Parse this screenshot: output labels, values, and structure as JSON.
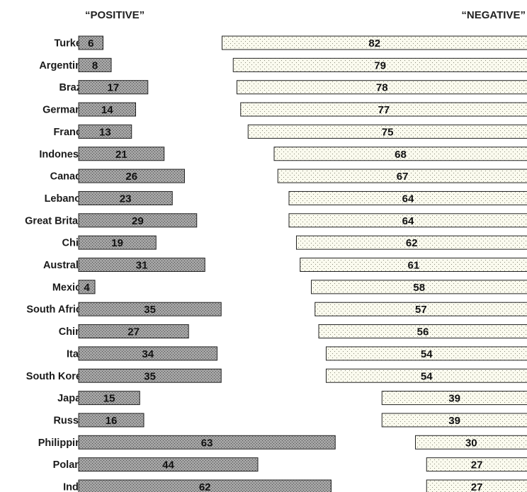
{
  "chart_data": {
    "type": "bar",
    "title": "",
    "headers": {
      "positive": "“POSITIVE”",
      "negative": "“NEGATIVE”"
    },
    "categories": [
      "Turkey",
      "Argentina",
      "Brazil",
      "Germany",
      "France",
      "Indonesia",
      "Canada",
      "Lebanon",
      "Great Britain",
      "Chile",
      "Australia",
      "Mexico",
      "South Africa",
      "China",
      "Italy",
      "South Korea",
      "Japan",
      "Russia",
      "Philippine",
      "Poland",
      "India"
    ],
    "series": [
      {
        "name": "“POSITIVE”",
        "values": [
          6,
          8,
          17,
          14,
          13,
          21,
          26,
          23,
          29,
          19,
          31,
          4,
          35,
          27,
          34,
          35,
          15,
          16,
          63,
          44,
          62
        ]
      },
      {
        "name": "“NEGATIVE”",
        "values": [
          82,
          79,
          78,
          77,
          75,
          68,
          67,
          64,
          64,
          62,
          61,
          58,
          57,
          56,
          54,
          54,
          39,
          39,
          30,
          27,
          27
        ]
      }
    ],
    "colors": {
      "positive_fill": "#9a9a9a",
      "negative_fill": "#f8f8ea",
      "bar_stroke": "#222222"
    }
  }
}
